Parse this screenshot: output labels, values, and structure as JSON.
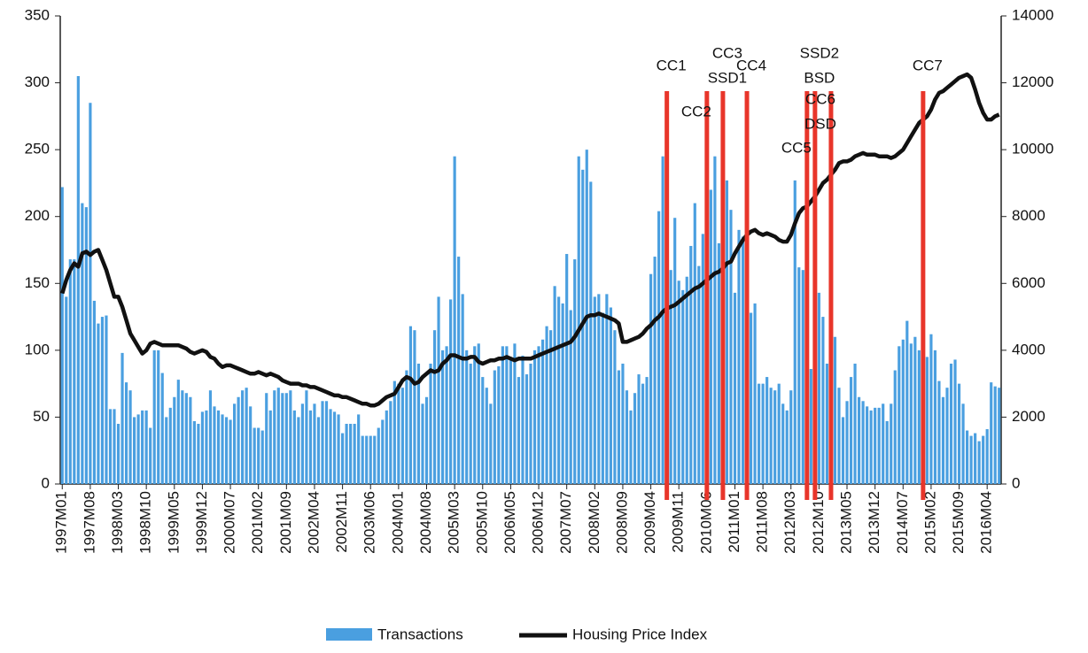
{
  "chart_data": {
    "type": "bar-line",
    "categories": [
      "1997M01",
      null,
      null,
      null,
      null,
      null,
      null,
      "1997M08",
      null,
      null,
      null,
      null,
      null,
      null,
      "1998M03",
      null,
      null,
      null,
      null,
      null,
      null,
      "1998M10",
      null,
      null,
      null,
      null,
      null,
      null,
      "1999M05",
      null,
      null,
      null,
      null,
      null,
      null,
      "1999M12",
      null,
      null,
      null,
      null,
      null,
      null,
      "2000M07",
      null,
      null,
      null,
      null,
      null,
      null,
      "2001M02",
      null,
      null,
      null,
      null,
      null,
      null,
      "2001M09",
      null,
      null,
      null,
      null,
      null,
      null,
      "2002M04",
      null,
      null,
      null,
      null,
      null,
      null,
      "2002M11",
      null,
      null,
      null,
      null,
      null,
      null,
      "2003M06",
      null,
      null,
      null,
      null,
      null,
      null,
      "2004M01",
      null,
      null,
      null,
      null,
      null,
      null,
      "2004M08",
      null,
      null,
      null,
      null,
      null,
      null,
      "2005M03",
      null,
      null,
      null,
      null,
      null,
      null,
      "2005M10",
      null,
      null,
      null,
      null,
      null,
      null,
      "2006M05",
      null,
      null,
      null,
      null,
      null,
      null,
      "2006M12",
      null,
      null,
      null,
      null,
      null,
      null,
      "2007M07",
      null,
      null,
      null,
      null,
      null,
      null,
      "2008M02",
      null,
      null,
      null,
      null,
      null,
      null,
      "2008M09",
      null,
      null,
      null,
      null,
      null,
      null,
      "2009M04",
      null,
      null,
      null,
      null,
      null,
      null,
      "2009M11",
      null,
      null,
      null,
      null,
      null,
      null,
      "2010M06",
      null,
      null,
      null,
      null,
      null,
      null,
      "2011M01",
      null,
      null,
      null,
      null,
      null,
      null,
      "2011M08",
      null,
      null,
      null,
      null,
      null,
      null,
      "2012M03",
      null,
      null,
      null,
      null,
      null,
      null,
      "2012M10",
      null,
      null,
      null,
      null,
      null,
      null,
      "2013M05",
      null,
      null,
      null,
      null,
      null,
      null,
      "2013M12",
      null,
      null,
      null,
      null,
      null,
      null,
      "2014M07",
      null,
      null,
      null,
      null,
      null,
      null,
      "2015M02",
      null,
      null,
      null,
      null,
      null,
      null,
      "2015M09",
      null,
      null,
      null,
      null,
      null,
      null,
      "2016M04",
      null,
      null,
      null
    ],
    "series": [
      {
        "name": "Transactions",
        "color": "#4a9fe0",
        "values": [
          222,
          140,
          168,
          168,
          305,
          210,
          207,
          285,
          137,
          120,
          125,
          126,
          56,
          56,
          45,
          98,
          76,
          70,
          50,
          52,
          55,
          55,
          42,
          100,
          100,
          83,
          50,
          57,
          65,
          78,
          70,
          68,
          65,
          47,
          45,
          54,
          55,
          70,
          58,
          55,
          52,
          50,
          48,
          60,
          65,
          70,
          72,
          58,
          42,
          42,
          40,
          68,
          55,
          70,
          72,
          68,
          68,
          70,
          55,
          50,
          60,
          70,
          55,
          60,
          50,
          62,
          62,
          56,
          54,
          52,
          38,
          45,
          45,
          45,
          52,
          36,
          36,
          36,
          36,
          42,
          48,
          55,
          62,
          77,
          75,
          72,
          85,
          118,
          115,
          90,
          60,
          65,
          90,
          115,
          140,
          100,
          103,
          138,
          245,
          170,
          142,
          100,
          90,
          103,
          105,
          80,
          72,
          60,
          85,
          88,
          103,
          103,
          95,
          105,
          80,
          96,
          82,
          90,
          100,
          103,
          108,
          118,
          115,
          148,
          140,
          135,
          172,
          130,
          168,
          245,
          235,
          250,
          226,
          140,
          142,
          128,
          142,
          132,
          115,
          85,
          90,
          70,
          55,
          68,
          82,
          75,
          80,
          157,
          170,
          204,
          245,
          175,
          160,
          199,
          152,
          145,
          155,
          178,
          210,
          163,
          187,
          133,
          220,
          245,
          180,
          133,
          227,
          205,
          143,
          190,
          185,
          115,
          128,
          135,
          75,
          75,
          80,
          72,
          70,
          75,
          60,
          55,
          70,
          227,
          162,
          160,
          125,
          86,
          148,
          143,
          125,
          90,
          103,
          110,
          72,
          50,
          62,
          80,
          90,
          65,
          62,
          58,
          55,
          57,
          57,
          60,
          47,
          60,
          85,
          103,
          108,
          122,
          105,
          110,
          100,
          88,
          95,
          112,
          100,
          77,
          65,
          72,
          90,
          93,
          75,
          60,
          40,
          36,
          38,
          32,
          36,
          41,
          76,
          73,
          72
        ]
      },
      {
        "name": "Housing Price Index",
        "color": "#111111",
        "axis": "y2",
        "values": [
          5700,
          6100,
          6400,
          6600,
          6500,
          6900,
          6950,
          6850,
          6950,
          7000,
          6700,
          6400,
          6000,
          5600,
          5600,
          5300,
          4900,
          4500,
          4300,
          4100,
          3900,
          4000,
          4200,
          4250,
          4200,
          4150,
          4150,
          4150,
          4150,
          4150,
          4100,
          4050,
          3950,
          3900,
          3950,
          4000,
          3950,
          3800,
          3750,
          3600,
          3500,
          3550,
          3550,
          3500,
          3450,
          3400,
          3350,
          3300,
          3300,
          3350,
          3300,
          3250,
          3300,
          3250,
          3200,
          3100,
          3050,
          3000,
          3000,
          3000,
          2950,
          2950,
          2900,
          2900,
          2850,
          2800,
          2750,
          2700,
          2650,
          2650,
          2600,
          2600,
          2550,
          2500,
          2450,
          2400,
          2400,
          2350,
          2350,
          2400,
          2500,
          2600,
          2650,
          2700,
          2900,
          3100,
          3200,
          3150,
          3000,
          3050,
          3200,
          3300,
          3400,
          3350,
          3400,
          3600,
          3700,
          3850,
          3850,
          3800,
          3750,
          3750,
          3800,
          3800,
          3650,
          3600,
          3650,
          3700,
          3700,
          3750,
          3750,
          3800,
          3750,
          3700,
          3750,
          3750,
          3750,
          3750,
          3800,
          3850,
          3900,
          3950,
          4000,
          4050,
          4100,
          4150,
          4200,
          4250,
          4400,
          4600,
          4800,
          5000,
          5050,
          5050,
          5100,
          5050,
          5000,
          4950,
          4900,
          4800,
          4250,
          4250,
          4300,
          4350,
          4400,
          4500,
          4650,
          4750,
          4900,
          5000,
          5150,
          5250,
          5300,
          5350,
          5450,
          5550,
          5650,
          5750,
          5850,
          5900,
          6000,
          6100,
          6200,
          6300,
          6350,
          6450,
          6600,
          6650,
          6900,
          7100,
          7300,
          7450,
          7550,
          7600,
          7500,
          7450,
          7500,
          7450,
          7400,
          7300,
          7250,
          7250,
          7450,
          7800,
          8100,
          8250,
          8300,
          8450,
          8600,
          8800,
          9000,
          9100,
          9250,
          9400,
          9600,
          9650,
          9650,
          9700,
          9800,
          9850,
          9900,
          9850,
          9850,
          9850,
          9800,
          9800,
          9800,
          9750,
          9800,
          9900,
          10000,
          10200,
          10400,
          10600,
          10800,
          10900,
          11000,
          11200,
          11500,
          11700,
          11750,
          11850,
          11950,
          12050,
          12150,
          12200,
          12250,
          12150,
          11800,
          11400,
          11100,
          10900,
          10900,
          11000,
          11050
        ]
      }
    ],
    "events": [
      {
        "x": "2009M08",
        "label": [
          "CC1"
        ]
      },
      {
        "x": "2010M06",
        "label": [
          "CC2"
        ]
      },
      {
        "x": "2010M10",
        "label": [
          "CC3",
          "SSD1"
        ]
      },
      {
        "x": "2011M04",
        "label": [
          "CC4"
        ]
      },
      {
        "x": "2012M07",
        "label": [
          "CC5"
        ]
      },
      {
        "x": "2012M09",
        "label": [
          "SSD2",
          "BSD"
        ]
      },
      {
        "x": "2013M01",
        "label": [
          "CC6",
          "DSD"
        ]
      },
      {
        "x": "2014M12",
        "label": [
          "CC7"
        ]
      }
    ],
    "event_color": "#e8352a",
    "ylim": [
      0,
      350
    ],
    "yticks": [
      0,
      50,
      100,
      150,
      200,
      250,
      300,
      350
    ],
    "y2lim": [
      0,
      14000
    ],
    "y2ticks": [
      0,
      2000,
      4000,
      6000,
      8000,
      10000,
      12000,
      14000
    ],
    "legend": "bottom"
  }
}
